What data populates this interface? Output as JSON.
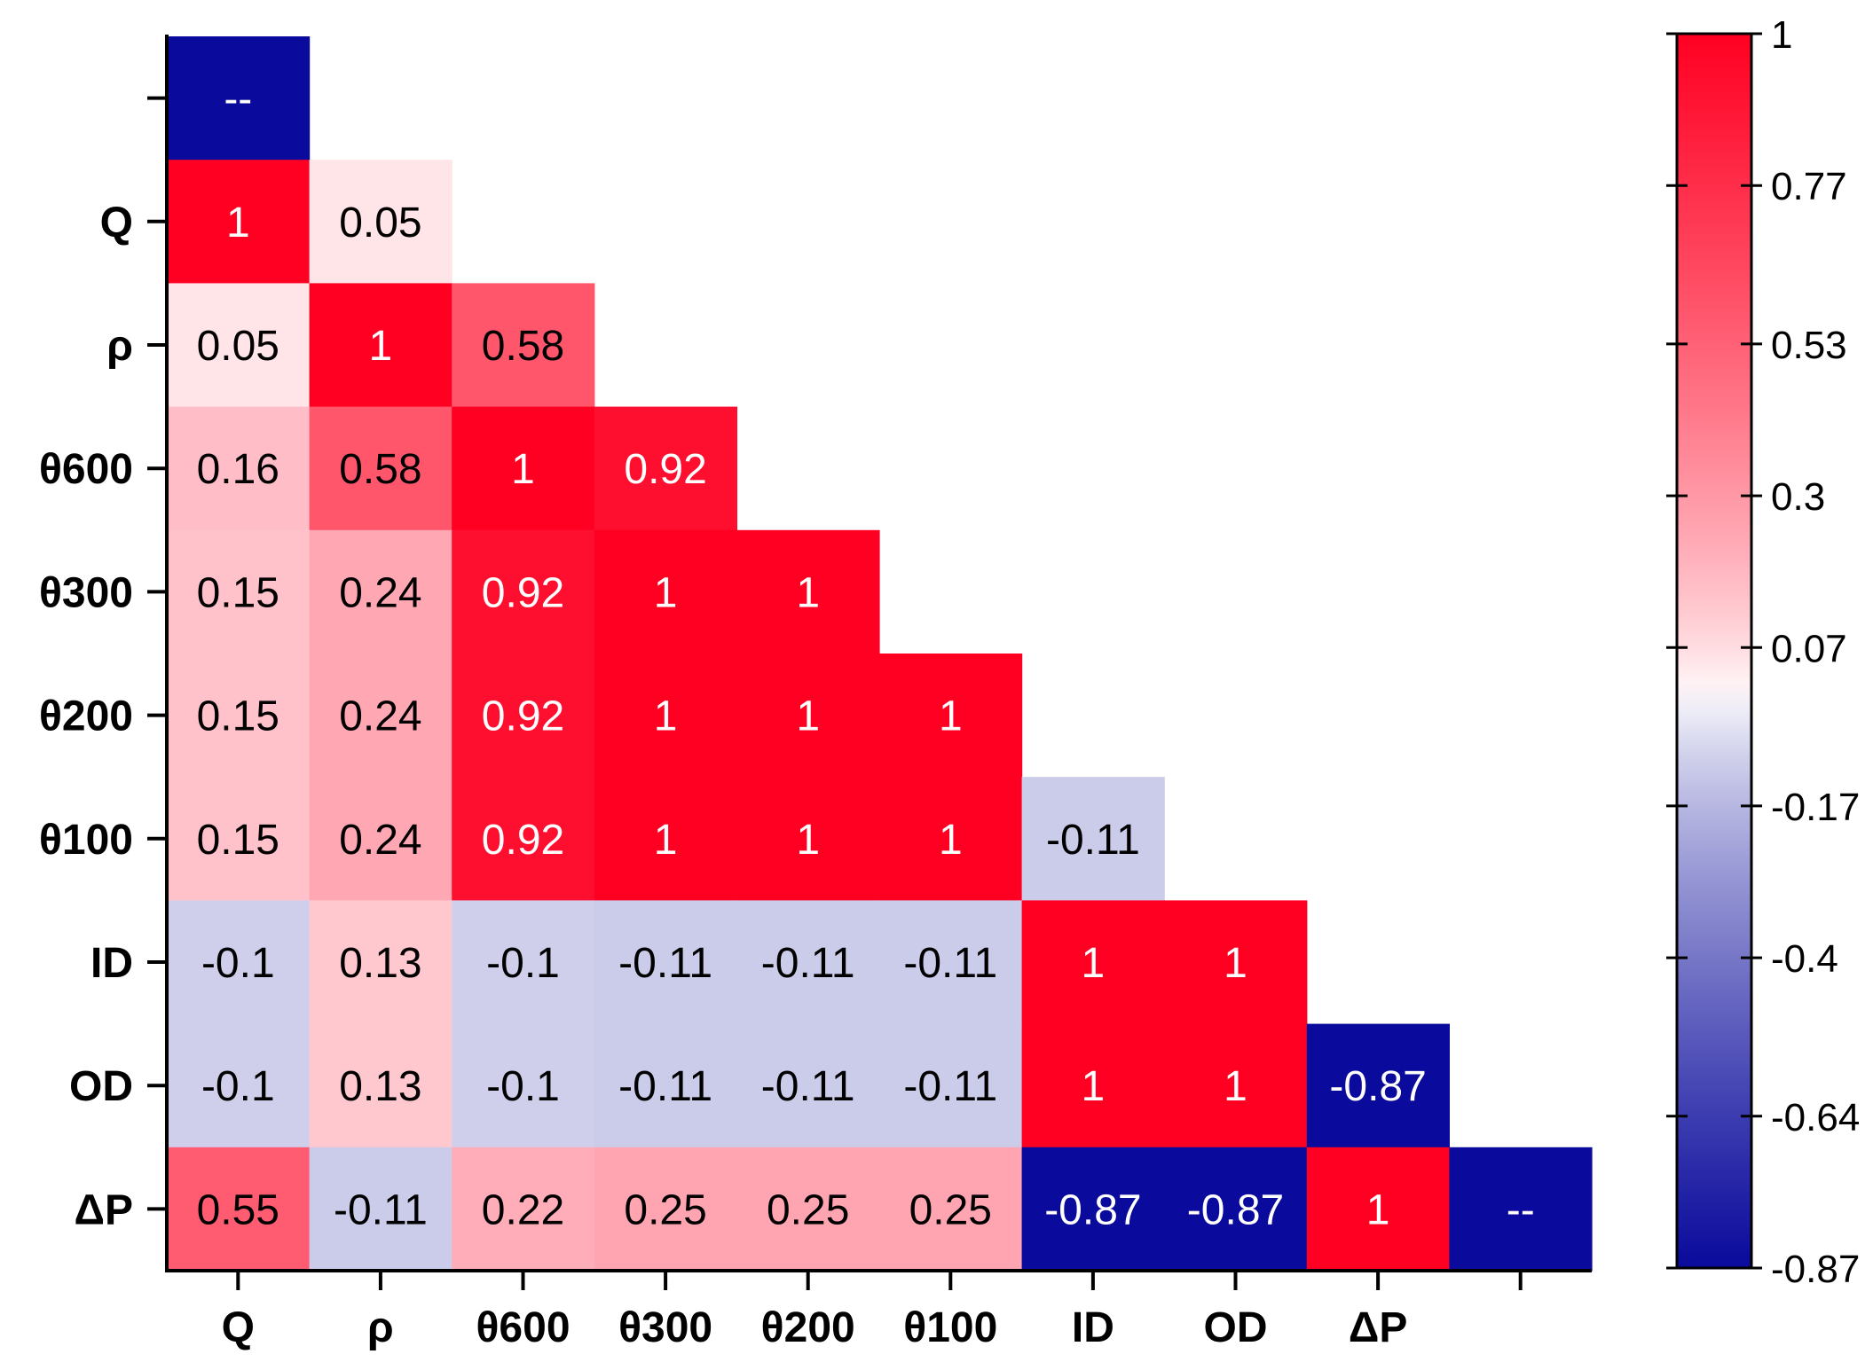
{
  "chart_data": {
    "type": "heatmap",
    "title": "",
    "row_labels": [
      "",
      "Q",
      "ρ",
      "θ600",
      "θ300",
      "θ200",
      "θ100",
      "ID",
      "OD",
      "ΔP"
    ],
    "col_labels": [
      "Q",
      "ρ",
      "θ600",
      "θ300",
      "θ200",
      "θ100",
      "ID",
      "OD",
      "ΔP",
      ""
    ],
    "cells": [
      [
        {
          "text": "--",
          "value": -0.87
        },
        null,
        null,
        null,
        null,
        null,
        null,
        null,
        null,
        null
      ],
      [
        {
          "text": "1",
          "value": 1
        },
        {
          "text": "0.05",
          "value": 0.05
        },
        null,
        null,
        null,
        null,
        null,
        null,
        null,
        null
      ],
      [
        {
          "text": "0.05",
          "value": 0.05
        },
        {
          "text": "1",
          "value": 1
        },
        {
          "text": "0.58",
          "value": 0.58
        },
        null,
        null,
        null,
        null,
        null,
        null,
        null
      ],
      [
        {
          "text": "0.16",
          "value": 0.16
        },
        {
          "text": "0.58",
          "value": 0.58
        },
        {
          "text": "1",
          "value": 1
        },
        {
          "text": "0.92",
          "value": 0.92
        },
        null,
        null,
        null,
        null,
        null,
        null
      ],
      [
        {
          "text": "0.15",
          "value": 0.15
        },
        {
          "text": "0.24",
          "value": 0.24
        },
        {
          "text": "0.92",
          "value": 0.92
        },
        {
          "text": "1",
          "value": 1
        },
        {
          "text": "1",
          "value": 1
        },
        null,
        null,
        null,
        null,
        null
      ],
      [
        {
          "text": "0.15",
          "value": 0.15
        },
        {
          "text": "0.24",
          "value": 0.24
        },
        {
          "text": "0.92",
          "value": 0.92
        },
        {
          "text": "1",
          "value": 1
        },
        {
          "text": "1",
          "value": 1
        },
        {
          "text": "1",
          "value": 1
        },
        null,
        null,
        null,
        null
      ],
      [
        {
          "text": "0.15",
          "value": 0.15
        },
        {
          "text": "0.24",
          "value": 0.24
        },
        {
          "text": "0.92",
          "value": 0.92
        },
        {
          "text": "1",
          "value": 1
        },
        {
          "text": "1",
          "value": 1
        },
        {
          "text": "1",
          "value": 1
        },
        {
          "text": "-0.11",
          "value": -0.11
        },
        null,
        null,
        null
      ],
      [
        {
          "text": "-0.1",
          "value": -0.1
        },
        {
          "text": "0.13",
          "value": 0.13
        },
        {
          "text": "-0.1",
          "value": -0.1
        },
        {
          "text": "-0.11",
          "value": -0.11
        },
        {
          "text": "-0.11",
          "value": -0.11
        },
        {
          "text": "-0.11",
          "value": -0.11
        },
        {
          "text": "1",
          "value": 1
        },
        {
          "text": "1",
          "value": 1
        },
        null,
        null
      ],
      [
        {
          "text": "-0.1",
          "value": -0.1
        },
        {
          "text": "0.13",
          "value": 0.13
        },
        {
          "text": "-0.1",
          "value": -0.1
        },
        {
          "text": "-0.11",
          "value": -0.11
        },
        {
          "text": "-0.11",
          "value": -0.11
        },
        {
          "text": "-0.11",
          "value": -0.11
        },
        {
          "text": "1",
          "value": 1
        },
        {
          "text": "1",
          "value": 1
        },
        {
          "text": "-0.87",
          "value": -0.87
        },
        null
      ],
      [
        {
          "text": "0.55",
          "value": 0.55
        },
        {
          "text": "-0.11",
          "value": -0.11
        },
        {
          "text": "0.22",
          "value": 0.22
        },
        {
          "text": "0.25",
          "value": 0.25
        },
        {
          "text": "0.25",
          "value": 0.25
        },
        {
          "text": "0.25",
          "value": 0.25
        },
        {
          "text": "-0.87",
          "value": -0.87
        },
        {
          "text": "-0.87",
          "value": -0.87
        },
        {
          "text": "1",
          "value": 1
        },
        {
          "text": "--",
          "value": -0.87
        }
      ]
    ],
    "colorbar": {
      "min": -0.87,
      "max": 1,
      "tick_labels": [
        "1",
        "0.77",
        "0.53",
        "0.3",
        "0.07",
        "-0.17",
        "-0.4",
        "-0.64",
        "-0.87"
      ],
      "tick_values": [
        1,
        0.77,
        0.53,
        0.3,
        0.07,
        -0.17,
        -0.4,
        -0.64,
        -0.87
      ],
      "colors": {
        "high": "#ff0022",
        "mid": "#ffffff",
        "low": "#0a0a9c"
      }
    },
    "grid": false,
    "legend": "right"
  }
}
